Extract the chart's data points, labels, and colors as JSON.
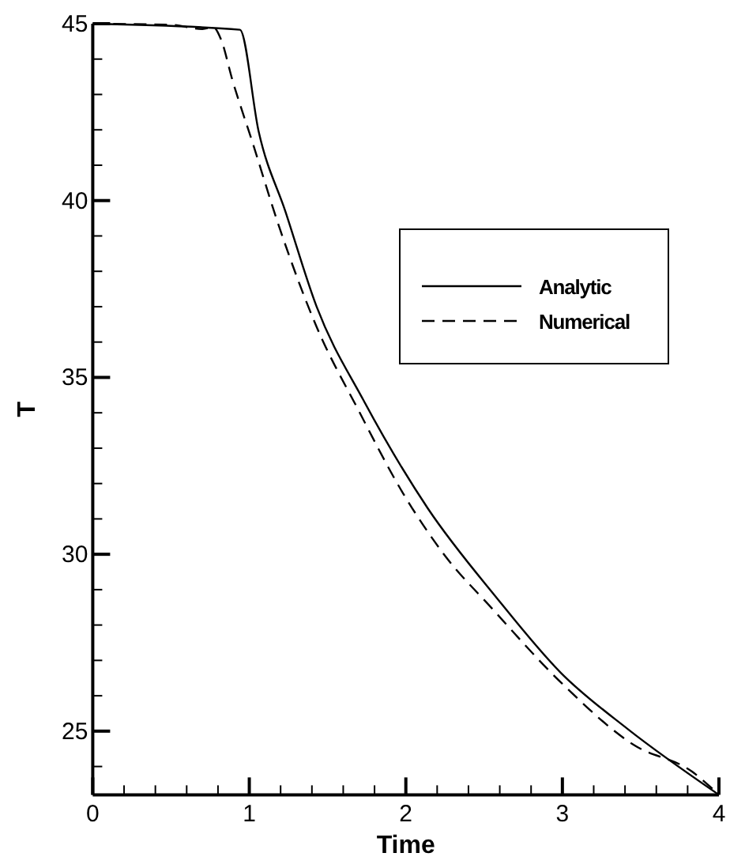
{
  "chart_data": {
    "type": "line",
    "xlabel": "Time",
    "ylabel": "T",
    "xlim": [
      0,
      4
    ],
    "ylim": [
      23.2,
      45
    ],
    "xticks": [
      0,
      {
        "value": 0.2,
        "label": null
      },
      {
        "value": 0.4,
        "label": null
      },
      {
        "value": 0.6,
        "label": null
      },
      {
        "value": 0.8,
        "label": null
      },
      1,
      {
        "value": 1.2,
        "label": null
      },
      {
        "value": 1.4,
        "label": null
      },
      {
        "value": 1.6,
        "label": null
      },
      {
        "value": 1.8,
        "label": null
      },
      2,
      {
        "value": 2.2,
        "label": null
      },
      {
        "value": 2.4,
        "label": null
      },
      {
        "value": 2.6,
        "label": null
      },
      {
        "value": 2.8,
        "label": null
      },
      3,
      {
        "value": 3.2,
        "label": null
      },
      {
        "value": 3.4,
        "label": null
      },
      {
        "value": 3.6,
        "label": null
      },
      {
        "value": 3.8,
        "label": null
      },
      4
    ],
    "yticks": [
      {
        "value": 24,
        "label": null
      },
      25,
      {
        "value": 26,
        "label": null
      },
      {
        "value": 27,
        "label": null
      },
      {
        "value": 28,
        "label": null
      },
      {
        "value": 29,
        "label": null
      },
      30,
      {
        "value": 31,
        "label": null
      },
      {
        "value": 32,
        "label": null
      },
      {
        "value": 33,
        "label": null
      },
      {
        "value": 34,
        "label": null
      },
      35,
      {
        "value": 36,
        "label": null
      },
      {
        "value": 37,
        "label": null
      },
      {
        "value": 38,
        "label": null
      },
      {
        "value": 39,
        "label": null
      },
      40,
      {
        "value": 41,
        "label": null
      },
      {
        "value": 42,
        "label": null
      },
      {
        "value": 43,
        "label": null
      },
      {
        "value": 44,
        "label": null
      },
      45
    ],
    "grid": false,
    "legend": "right",
    "series": [
      {
        "name": "Analytic",
        "color": "#000000",
        "line_style": "solid",
        "x": [
          0,
          0.94,
          1.06,
          1.23,
          1.43,
          1.73,
          2.14,
          2.58,
          2.99,
          3.42,
          4
        ],
        "values": [
          45,
          44.83,
          41.95,
          39.7,
          37.0,
          34.35,
          31.3,
          28.77,
          26.65,
          25.05,
          23.2
        ]
      },
      {
        "name": "Numerical",
        "color": "#000000",
        "line_style": "dashed",
        "x": [
          0,
          0.5,
          0.7,
          0.77,
          0.82,
          0.89,
          1.02,
          1.19,
          1.43,
          1.7,
          1.98,
          2.25,
          2.55,
          2.99,
          3.46,
          3.83,
          4
        ],
        "values": [
          45,
          44.97,
          44.85,
          44.9,
          44.55,
          43.44,
          41.65,
          39.27,
          36.43,
          34.05,
          31.74,
          29.96,
          28.47,
          26.38,
          24.6,
          23.85,
          23.2
        ]
      }
    ]
  }
}
